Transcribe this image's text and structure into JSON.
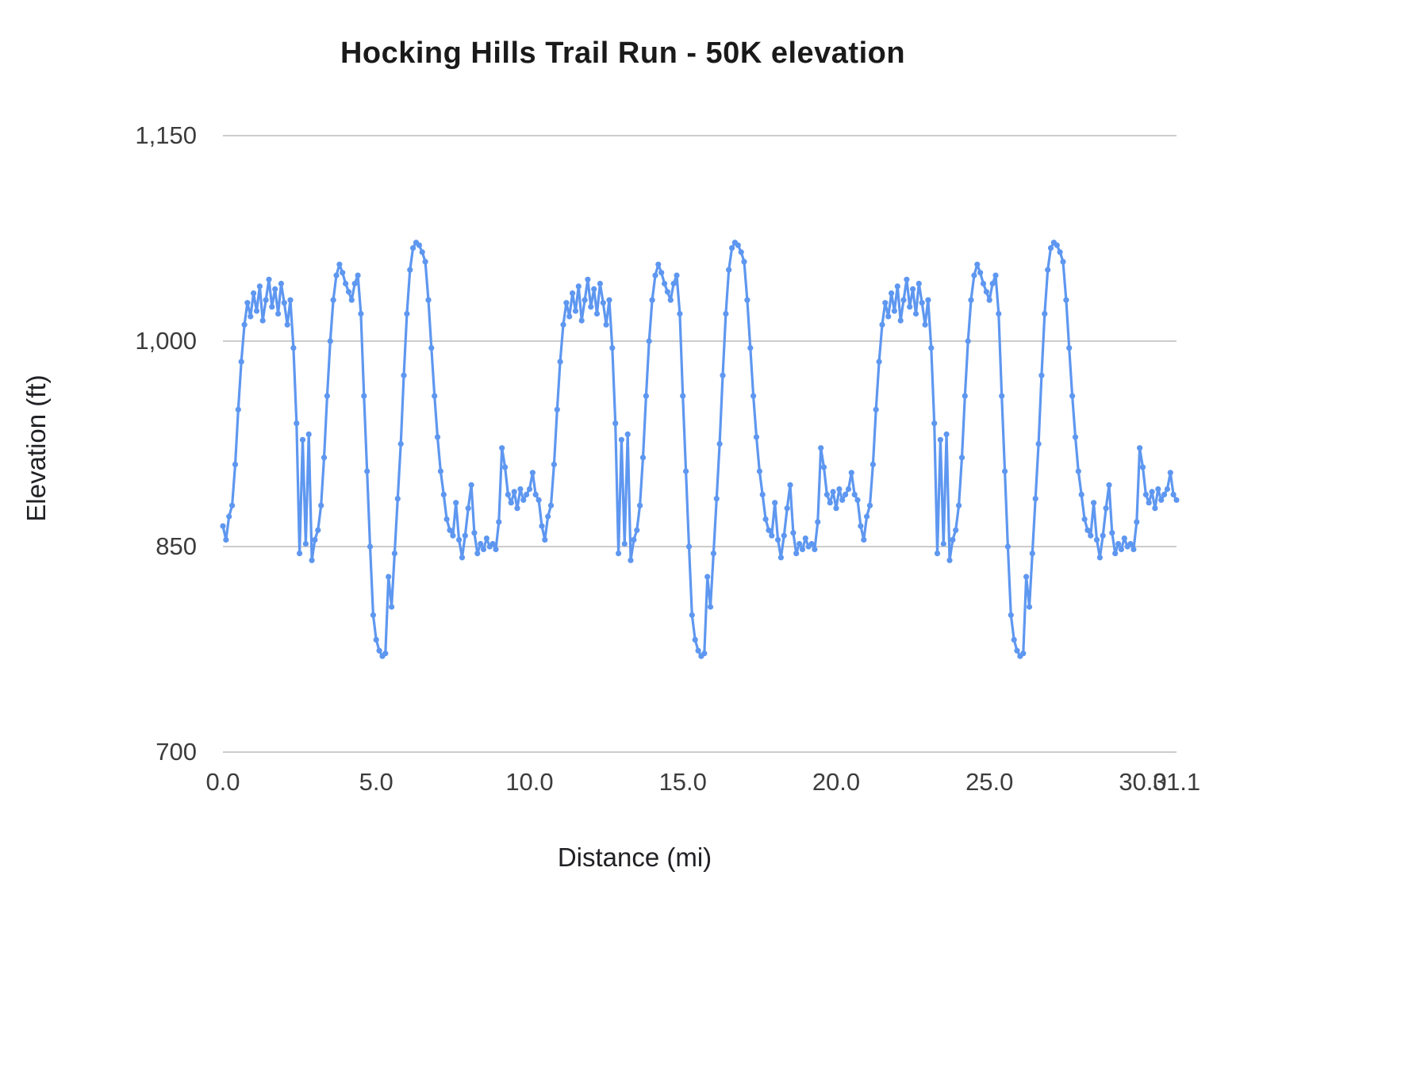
{
  "title": "Hocking Hills Trail Run - 50K elevation",
  "chart_data": {
    "type": "line",
    "title": "Hocking Hills Trail Run - 50K elevation",
    "xlabel": "Distance (mi)",
    "ylabel": "Elevation (ft)",
    "xlim": [
      0,
      31.1
    ],
    "ylim": [
      700,
      1150
    ],
    "x_ticks": [
      0.0,
      5.0,
      10.0,
      15.0,
      20.0,
      25.0,
      30.0,
      31.1
    ],
    "x_tick_labels": [
      "0.0",
      "5.0",
      "10.0",
      "15.0",
      "20.0",
      "25.0",
      "30.0",
      "31.1"
    ],
    "y_ticks": [
      700,
      850,
      1000,
      1150
    ],
    "y_tick_labels": [
      "700",
      "850",
      "1,000",
      "1,150"
    ],
    "grid": "horizontal",
    "legend": "none",
    "series_name": "Elevation (ft)",
    "series_color": "#5e97f0",
    "marker": "circle",
    "x_start": 0.0,
    "x_step": 0.1,
    "loops_in_course": 3,
    "values": [
      865,
      855,
      872,
      880,
      910,
      950,
      985,
      1012,
      1028,
      1018,
      1035,
      1022,
      1040,
      1015,
      1030,
      1045,
      1025,
      1038,
      1020,
      1042,
      1028,
      1012,
      1030,
      995,
      940,
      845,
      928,
      852,
      932,
      840,
      855,
      862,
      880,
      915,
      960,
      1000,
      1030,
      1048,
      1056,
      1050,
      1042,
      1036,
      1030,
      1042,
      1048,
      1020,
      960,
      905,
      850,
      800,
      782,
      774,
      770,
      772,
      828,
      806,
      845,
      885,
      925,
      975,
      1020,
      1052,
      1068,
      1072,
      1070,
      1065,
      1058,
      1030,
      995,
      960,
      930,
      905,
      888,
      870,
      862,
      858,
      882,
      855,
      842,
      858,
      878,
      895,
      860,
      845,
      852,
      848,
      856,
      850,
      852,
      848,
      868,
      922,
      908,
      888,
      882,
      890,
      878,
      892,
      884,
      888,
      892,
      904,
      888,
      884,
      865,
      855,
      872,
      880,
      910,
      950,
      985,
      1012,
      1028,
      1018,
      1035,
      1022,
      1040,
      1015,
      1030,
      1045,
      1025,
      1038,
      1020,
      1042,
      1028,
      1012,
      1030,
      995,
      940,
      845,
      928,
      852,
      932,
      840,
      855,
      862,
      880,
      915,
      960,
      1000,
      1030,
      1048,
      1056,
      1050,
      1042,
      1036,
      1030,
      1042,
      1048,
      1020,
      960,
      905,
      850,
      800,
      782,
      774,
      770,
      772,
      828,
      806,
      845,
      885,
      925,
      975,
      1020,
      1052,
      1068,
      1072,
      1070,
      1065,
      1058,
      1030,
      995,
      960,
      930,
      905,
      888,
      870,
      862,
      858,
      882,
      855,
      842,
      858,
      878,
      895,
      860,
      845,
      852,
      848,
      856,
      850,
      852,
      848,
      868,
      922,
      908,
      888,
      882,
      890,
      878,
      892,
      884,
      888,
      892,
      904,
      888,
      884,
      865,
      855,
      872,
      880,
      910,
      950,
      985,
      1012,
      1028,
      1018,
      1035,
      1022,
      1040,
      1015,
      1030,
      1045,
      1025,
      1038,
      1020,
      1042,
      1028,
      1012,
      1030,
      995,
      940,
      845,
      928,
      852,
      932,
      840,
      855,
      862,
      880,
      915,
      960,
      1000,
      1030,
      1048,
      1056,
      1050,
      1042,
      1036,
      1030,
      1042,
      1048,
      1020,
      960,
      905,
      850,
      800,
      782,
      774,
      770,
      772,
      828,
      806,
      845,
      885,
      925,
      975,
      1020,
      1052,
      1068,
      1072,
      1070,
      1065,
      1058,
      1030,
      995,
      960,
      930,
      905,
      888,
      870,
      862,
      858,
      882,
      855,
      842,
      858,
      878,
      895,
      860,
      845,
      852,
      848,
      856,
      850,
      852,
      848,
      868,
      922,
      908,
      888,
      882,
      890,
      878,
      892,
      884,
      888,
      892,
      904,
      888,
      884
    ]
  },
  "plot": {
    "gridline_color": "#cccccc",
    "background": "#ffffff"
  }
}
